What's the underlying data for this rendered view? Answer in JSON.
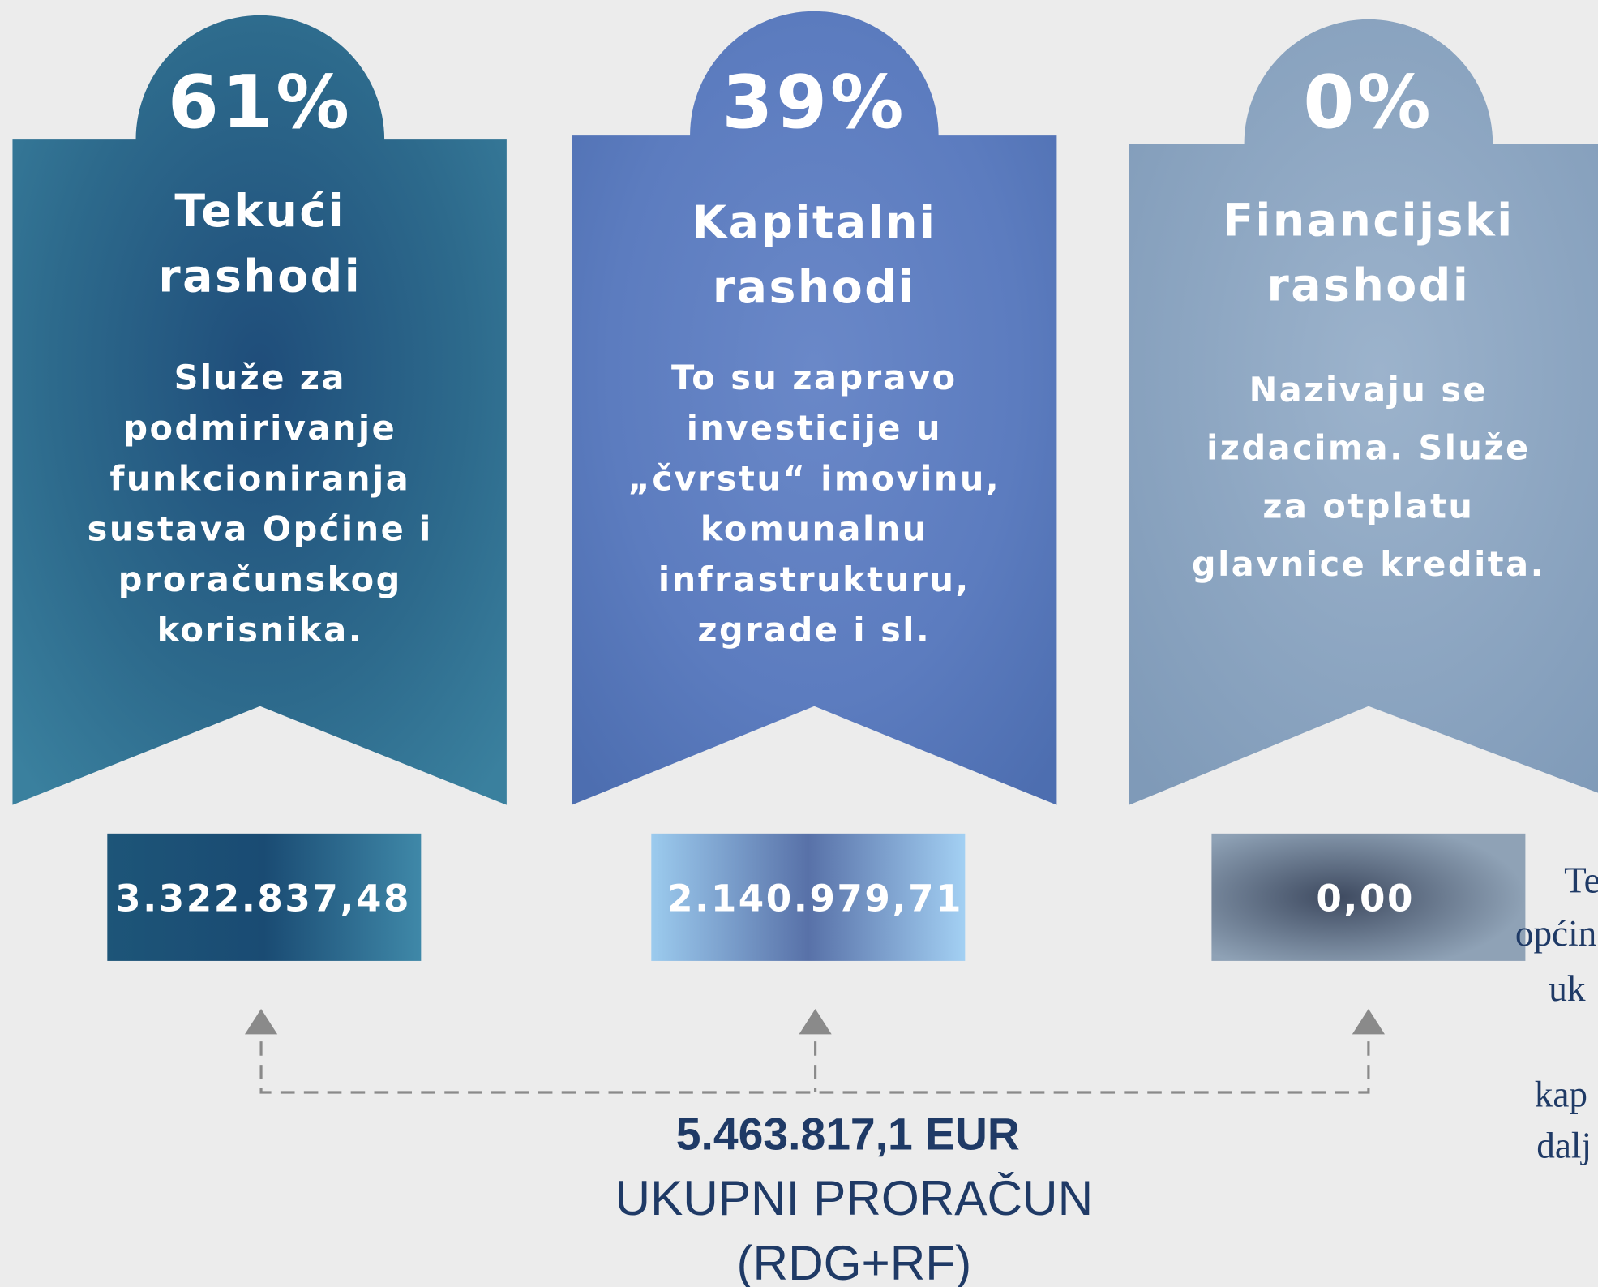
{
  "cards": [
    {
      "percent": "61%",
      "title": [
        "Tekući",
        "rashodi"
      ],
      "description": [
        "Služe za",
        "podmirivanje",
        "funkcioniranja",
        "sustava Općine i",
        "proračunskog",
        "korisnika."
      ],
      "amount": "3.322.837,48"
    },
    {
      "percent": "39%",
      "title": [
        "Kapitalni",
        "rashodi"
      ],
      "description": [
        "To su zapravo",
        "investicije u",
        "„čvrstu“ imovinu,",
        "komunalnu",
        "infrastrukturu,",
        "zgrade i sl."
      ],
      "amount": "2.140.979,71"
    },
    {
      "percent": "0%",
      "title": [
        "Financijski",
        "rashodi"
      ],
      "description": [
        "Nazivaju se",
        "izdacima. Služe",
        "za otplatu",
        "glavnice kredita."
      ],
      "amount": "0,00"
    }
  ],
  "total": {
    "amount": "5.463.817,1 EUR",
    "label": "UKUPNI PRORAČUN",
    "sublabel": "(RDG+RF)"
  },
  "side_text": [
    "Te",
    "općin",
    "uk",
    "kap",
    "dalj"
  ]
}
